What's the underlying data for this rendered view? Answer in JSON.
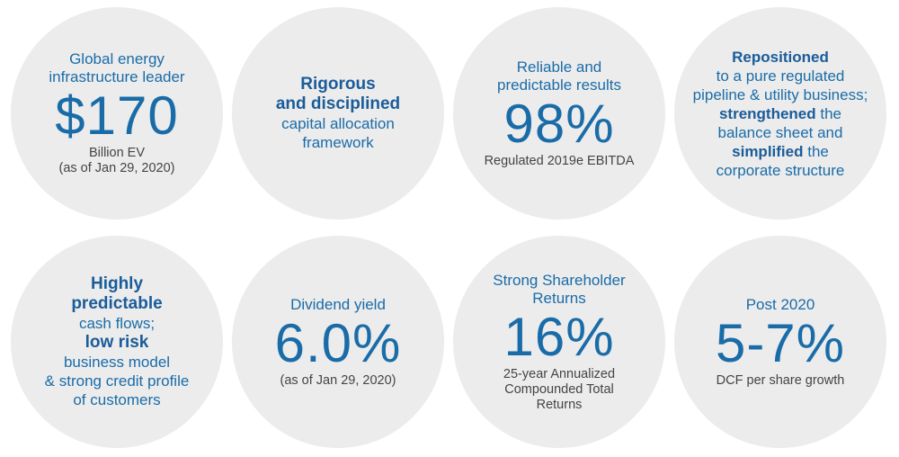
{
  "circles": [
    {
      "label_lines": [
        "Global energy",
        "infrastructure leader"
      ],
      "value": "$170",
      "sub_lines": [
        "Billion EV",
        "(as of Jan 29, 2020)"
      ]
    },
    {
      "lines": [
        "Rigorous",
        "and disciplined",
        "capital allocation",
        "framework"
      ]
    },
    {
      "label_lines": [
        "Reliable and",
        "predictable results"
      ],
      "value": "98%",
      "sub_lines": [
        "Regulated 2019e EBITDA"
      ]
    },
    {
      "line1": "Repositioned",
      "line2": "to a pure regulated",
      "line3": "pipeline & utility business;",
      "line4_bold": "strengthened",
      "line4_rest": " the",
      "line5": "balance sheet and",
      "line6_bold": "simplified",
      "line6_rest": " the",
      "line7": "corporate structure"
    },
    {
      "line1": "Highly",
      "line2": "predictable",
      "line3": "cash flows;",
      "line4": "low risk",
      "line5": "business model",
      "line6": "& strong credit profile",
      "line7": "of customers"
    },
    {
      "label_lines": [
        "Dividend yield"
      ],
      "value": "6.0%",
      "sub_lines": [
        "(as of Jan 29, 2020)"
      ]
    },
    {
      "label_lines": [
        "Strong Shareholder",
        "Returns"
      ],
      "value": "16%",
      "sub_lines": [
        "25-year Annualized",
        "Compounded Total",
        "Returns"
      ]
    },
    {
      "label_lines": [
        "Post 2020"
      ],
      "value": "5-7%",
      "sub_lines": [
        "DCF per share growth"
      ]
    }
  ],
  "colors": {
    "accent": "#1a6ca8",
    "circle_bg": "#ececec",
    "subtext": "#444444"
  }
}
